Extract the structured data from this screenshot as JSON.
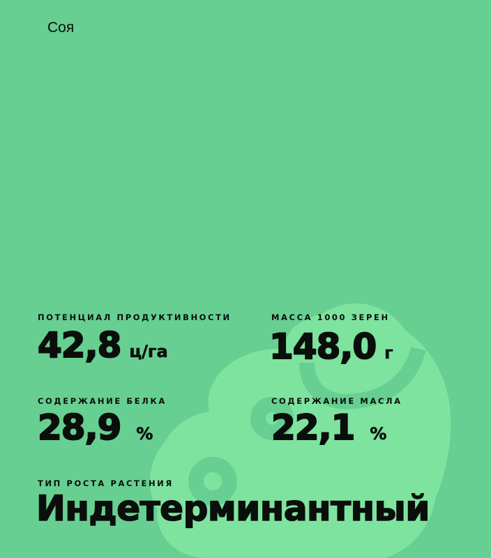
{
  "title": "Соя",
  "colors": {
    "background": "#67cf91",
    "decoration": "#7fe3a0",
    "text": "#0a0f0b"
  },
  "stats": [
    {
      "label": "ПОТЕНЦИАЛ ПРОДУКТИВНОСТИ",
      "value": "42,8",
      "unit": "ц/га"
    },
    {
      "label": "МАССА 1000 ЗЕРЕН",
      "value": "148,0",
      "unit": "г"
    },
    {
      "label": "СОДЕРЖАНИЕ БЕЛКА",
      "value": "28,9",
      "unit": "%"
    },
    {
      "label": "СОДЕРЖАНИЕ МАСЛА",
      "value": "22,1",
      "unit": "%"
    }
  ],
  "growth": {
    "label": "ТИП РОСТА РАСТЕНИЯ",
    "value": "Индетерминантный"
  }
}
